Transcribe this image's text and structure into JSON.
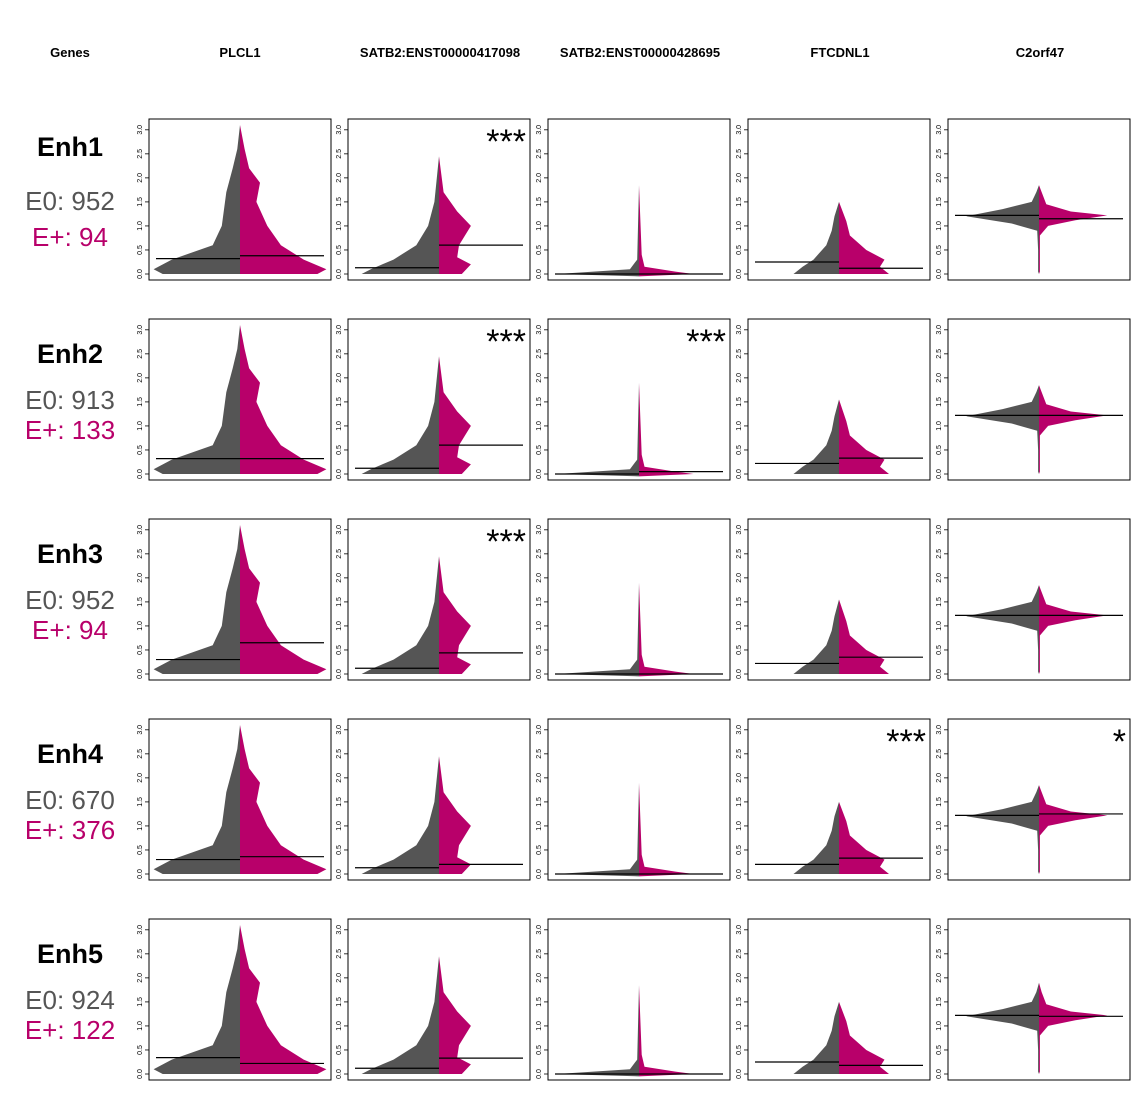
{
  "colors": {
    "e0": "#555555",
    "eplus": "#b8006a",
    "frame": "#000000"
  },
  "header": {
    "first": "Genes",
    "genes": [
      "PLCL1",
      "SATB2:ENST00000417098",
      "SATB2:ENST00000428695",
      "FTCDNL1",
      "C2orf47"
    ]
  },
  "rows": [
    {
      "name": "Enh1",
      "e0": "E0: 952",
      "eplus": "E+: 94"
    },
    {
      "name": "Enh2",
      "e0": "E0: 913",
      "eplus": "E+: 133"
    },
    {
      "name": "Enh3",
      "e0": "E0: 952",
      "eplus": "E+: 94"
    },
    {
      "name": "Enh4",
      "e0": "E0: 670",
      "eplus": "E+: 376"
    },
    {
      "name": "Enh5",
      "e0": "E0: 924",
      "eplus": "E+: 122"
    }
  ],
  "chart_data": {
    "type": "violin",
    "ylim": [
      0,
      3.1
    ],
    "yticks": [
      "0.0",
      "0.5",
      "1.0",
      "1.5",
      "2.0",
      "2.5",
      "3.0"
    ],
    "panels": [
      [
        {
          "gene": "PLCL1",
          "e0_median": 0.32,
          "eplus_median": 0.38,
          "e0_max": 3.1,
          "eplus_max": 3.1,
          "sig": ""
        },
        {
          "gene": "SATB2:ENST00000417098",
          "e0_median": 0.13,
          "eplus_median": 0.6,
          "e0_max": 2.45,
          "eplus_max": 2.45,
          "sig": "***"
        },
        {
          "gene": "SATB2:ENST00000428695",
          "e0_median": 0.0,
          "eplus_median": 0.0,
          "e0_max": 1.85,
          "eplus_max": 1.85,
          "sig": ""
        },
        {
          "gene": "FTCDNL1",
          "e0_median": 0.25,
          "eplus_median": 0.12,
          "e0_max": 1.5,
          "eplus_max": 1.5,
          "sig": ""
        },
        {
          "gene": "C2orf47",
          "e0_median": 1.22,
          "eplus_median": 1.15,
          "e0_max": 1.85,
          "eplus_max": 1.85,
          "sig": ""
        }
      ],
      [
        {
          "gene": "PLCL1",
          "e0_median": 0.32,
          "eplus_median": 0.32,
          "e0_max": 3.1,
          "eplus_max": 3.1,
          "sig": ""
        },
        {
          "gene": "SATB2:ENST00000417098",
          "e0_median": 0.12,
          "eplus_median": 0.6,
          "e0_max": 2.45,
          "eplus_max": 2.45,
          "sig": "***"
        },
        {
          "gene": "SATB2:ENST00000428695",
          "e0_median": 0.0,
          "eplus_median": 0.05,
          "e0_max": 1.95,
          "eplus_max": 1.95,
          "sig": "***"
        },
        {
          "gene": "FTCDNL1",
          "e0_median": 0.22,
          "eplus_median": 0.33,
          "e0_max": 1.55,
          "eplus_max": 1.55,
          "sig": ""
        },
        {
          "gene": "C2orf47",
          "e0_median": 1.22,
          "eplus_median": 1.22,
          "e0_max": 1.85,
          "eplus_max": 1.85,
          "sig": ""
        }
      ],
      [
        {
          "gene": "PLCL1",
          "e0_median": 0.3,
          "eplus_median": 0.65,
          "e0_max": 3.1,
          "eplus_max": 3.1,
          "sig": ""
        },
        {
          "gene": "SATB2:ENST00000417098",
          "e0_median": 0.12,
          "eplus_median": 0.44,
          "e0_max": 2.6,
          "eplus_max": 2.6,
          "sig": "***"
        },
        {
          "gene": "SATB2:ENST00000428695",
          "e0_median": 0.0,
          "eplus_median": 0.0,
          "e0_max": 1.95,
          "eplus_max": 1.95,
          "sig": ""
        },
        {
          "gene": "FTCDNL1",
          "e0_median": 0.22,
          "eplus_median": 0.35,
          "e0_max": 1.55,
          "eplus_max": 1.55,
          "sig": ""
        },
        {
          "gene": "C2orf47",
          "e0_median": 1.22,
          "eplus_median": 1.22,
          "e0_max": 1.85,
          "eplus_max": 1.85,
          "sig": ""
        }
      ],
      [
        {
          "gene": "PLCL1",
          "e0_median": 0.3,
          "eplus_median": 0.36,
          "e0_max": 3.1,
          "eplus_max": 3.1,
          "sig": ""
        },
        {
          "gene": "SATB2:ENST00000417098",
          "e0_median": 0.13,
          "eplus_median": 0.2,
          "e0_max": 2.45,
          "eplus_max": 2.45,
          "sig": ""
        },
        {
          "gene": "SATB2:ENST00000428695",
          "e0_median": 0.0,
          "eplus_median": 0.0,
          "e0_max": 1.9,
          "eplus_max": 1.9,
          "sig": ""
        },
        {
          "gene": "FTCDNL1",
          "e0_median": 0.2,
          "eplus_median": 0.33,
          "e0_max": 1.5,
          "eplus_max": 1.5,
          "sig": "***"
        },
        {
          "gene": "C2orf47",
          "e0_median": 1.22,
          "eplus_median": 1.25,
          "e0_max": 1.85,
          "eplus_max": 1.85,
          "sig": "*"
        }
      ],
      [
        {
          "gene": "PLCL1",
          "e0_median": 0.34,
          "eplus_median": 0.22,
          "e0_max": 3.1,
          "eplus_max": 3.1,
          "sig": ""
        },
        {
          "gene": "SATB2:ENST00000417098",
          "e0_median": 0.12,
          "eplus_median": 0.33,
          "e0_max": 2.45,
          "eplus_max": 2.45,
          "sig": ""
        },
        {
          "gene": "SATB2:ENST00000428695",
          "e0_median": 0.0,
          "eplus_median": 0.0,
          "e0_max": 1.85,
          "eplus_max": 1.85,
          "sig": ""
        },
        {
          "gene": "FTCDNL1",
          "e0_median": 0.25,
          "eplus_median": 0.18,
          "e0_max": 1.5,
          "eplus_max": 1.5,
          "sig": ""
        },
        {
          "gene": "C2orf47",
          "e0_median": 1.22,
          "eplus_median": 1.2,
          "e0_max": 1.9,
          "eplus_max": 1.9,
          "sig": ""
        }
      ]
    ]
  }
}
